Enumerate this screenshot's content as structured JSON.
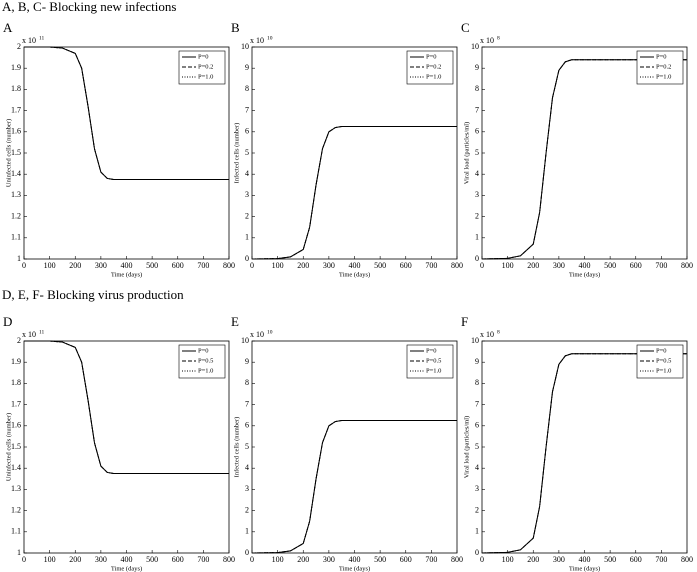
{
  "headings": [
    "A, B, C- Blocking new infections",
    "D, E, F- Blocking virus production"
  ],
  "chart_data": [
    {
      "type": "line",
      "panel": "A",
      "y_multiplier_base": "x 10",
      "y_multiplier_exponent": "11",
      "xlabel": "Time (days)",
      "ylabel": "Uninfected cells (number)",
      "x": [
        0,
        100,
        150,
        200,
        225,
        250,
        275,
        300,
        325,
        350,
        400,
        500,
        600,
        700,
        800
      ],
      "series": [
        {
          "name": "P=0",
          "color": "#000000",
          "dash": "solid",
          "values": [
            2,
            2,
            1.995,
            1.97,
            1.9,
            1.72,
            1.52,
            1.41,
            1.38,
            1.375,
            1.375,
            1.375,
            1.375,
            1.375,
            1.375
          ]
        },
        {
          "name": "P=0.2",
          "color": "#000000",
          "dash": "dashed",
          "values": [
            2,
            2,
            1.995,
            1.97,
            1.9,
            1.72,
            1.52,
            1.41,
            1.38,
            1.375,
            1.375,
            1.375,
            1.375,
            1.375,
            1.375
          ]
        },
        {
          "name": "P=1.0",
          "color": "#000000",
          "dash": "dotted",
          "values": [
            2,
            2,
            1.995,
            1.97,
            1.9,
            1.72,
            1.52,
            1.41,
            1.38,
            1.375,
            1.375,
            1.375,
            1.375,
            1.375,
            1.375
          ]
        }
      ],
      "xlim": [
        0,
        800
      ],
      "xticks": [
        0,
        100,
        200,
        300,
        400,
        500,
        600,
        700,
        800
      ],
      "ylim": [
        1,
        2
      ],
      "yticks": [
        1,
        1.1,
        1.2,
        1.3,
        1.4,
        1.5,
        1.6,
        1.7,
        1.8,
        1.9,
        2
      ],
      "legend": "upper right"
    },
    {
      "type": "line",
      "panel": "B",
      "y_multiplier_base": "x 10",
      "y_multiplier_exponent": "10",
      "xlabel": "Time (days)",
      "ylabel": "Infected cells (number)",
      "x": [
        0,
        100,
        150,
        200,
        225,
        250,
        275,
        300,
        325,
        350,
        400,
        500,
        600,
        700,
        800
      ],
      "series": [
        {
          "name": "P=0",
          "color": "#000000",
          "dash": "solid",
          "values": [
            0,
            0.02,
            0.1,
            0.45,
            1.5,
            3.5,
            5.2,
            6.0,
            6.2,
            6.25,
            6.25,
            6.25,
            6.25,
            6.25,
            6.25
          ]
        },
        {
          "name": "P=0.2",
          "color": "#000000",
          "dash": "dashed",
          "values": [
            0,
            0.02,
            0.1,
            0.45,
            1.5,
            3.5,
            5.2,
            6.0,
            6.2,
            6.25,
            6.25,
            6.25,
            6.25,
            6.25,
            6.25
          ]
        },
        {
          "name": "P=1.0",
          "color": "#000000",
          "dash": "dotted",
          "values": [
            0,
            0.02,
            0.1,
            0.45,
            1.5,
            3.5,
            5.2,
            6.0,
            6.2,
            6.25,
            6.25,
            6.25,
            6.25,
            6.25,
            6.25
          ]
        }
      ],
      "xlim": [
        0,
        800
      ],
      "xticks": [
        0,
        100,
        200,
        300,
        400,
        500,
        600,
        700,
        800
      ],
      "ylim": [
        0,
        10
      ],
      "yticks": [
        0,
        1,
        2,
        3,
        4,
        5,
        6,
        7,
        8,
        9,
        10
      ],
      "legend": "upper right"
    },
    {
      "type": "line",
      "panel": "C",
      "y_multiplier_base": "x 10",
      "y_multiplier_exponent": "8",
      "xlabel": "Time (days)",
      "ylabel": "Viral load (particles/ml)",
      "x": [
        0,
        100,
        150,
        200,
        225,
        250,
        275,
        300,
        325,
        350,
        400,
        500,
        600,
        700,
        800
      ],
      "series": [
        {
          "name": "P=0",
          "color": "#000000",
          "dash": "solid",
          "values": [
            0,
            0.03,
            0.15,
            0.7,
            2.2,
            5.0,
            7.6,
            8.9,
            9.3,
            9.4,
            9.4,
            9.4,
            9.4,
            9.4,
            9.4
          ]
        },
        {
          "name": "P=0.2",
          "color": "#000000",
          "dash": "dashed",
          "values": [
            0,
            0.03,
            0.15,
            0.7,
            2.2,
            5.0,
            7.6,
            8.9,
            9.3,
            9.4,
            9.4,
            9.4,
            9.4,
            9.4,
            9.4
          ]
        },
        {
          "name": "P=1.0",
          "color": "#000000",
          "dash": "dotted",
          "values": [
            0,
            0.03,
            0.15,
            0.7,
            2.2,
            5.0,
            7.6,
            8.9,
            9.3,
            9.4,
            9.4,
            9.4,
            9.4,
            9.4,
            9.4
          ]
        }
      ],
      "xlim": [
        0,
        800
      ],
      "xticks": [
        0,
        100,
        200,
        300,
        400,
        500,
        600,
        700,
        800
      ],
      "ylim": [
        0,
        10
      ],
      "yticks": [
        0,
        1,
        2,
        3,
        4,
        5,
        6,
        7,
        8,
        9,
        10
      ],
      "legend": "upper right"
    },
    {
      "type": "line",
      "panel": "D",
      "y_multiplier_base": "x 10",
      "y_multiplier_exponent": "11",
      "xlabel": "Time (days)",
      "ylabel": "Uninfected cells (number)",
      "x": [
        0,
        100,
        150,
        200,
        225,
        250,
        275,
        300,
        325,
        350,
        400,
        500,
        600,
        700,
        800
      ],
      "series": [
        {
          "name": "P=0",
          "color": "#000000",
          "dash": "solid",
          "values": [
            2,
            2,
            1.995,
            1.97,
            1.9,
            1.72,
            1.52,
            1.41,
            1.38,
            1.375,
            1.375,
            1.375,
            1.375,
            1.375,
            1.375
          ]
        },
        {
          "name": "P=0.5",
          "color": "#000000",
          "dash": "dashed",
          "values": [
            2,
            2,
            1.995,
            1.97,
            1.9,
            1.72,
            1.52,
            1.41,
            1.38,
            1.375,
            1.375,
            1.375,
            1.375,
            1.375,
            1.375
          ]
        },
        {
          "name": "P=1.0",
          "color": "#000000",
          "dash": "dotted",
          "values": [
            2,
            2,
            1.995,
            1.97,
            1.9,
            1.72,
            1.52,
            1.41,
            1.38,
            1.375,
            1.375,
            1.375,
            1.375,
            1.375,
            1.375
          ]
        }
      ],
      "xlim": [
        0,
        800
      ],
      "xticks": [
        0,
        100,
        200,
        300,
        400,
        500,
        600,
        700,
        800
      ],
      "ylim": [
        1,
        2
      ],
      "yticks": [
        1,
        1.1,
        1.2,
        1.3,
        1.4,
        1.5,
        1.6,
        1.7,
        1.8,
        1.9,
        2
      ],
      "legend": "upper right"
    },
    {
      "type": "line",
      "panel": "E",
      "y_multiplier_base": "x 10",
      "y_multiplier_exponent": "10",
      "xlabel": "Time (days)",
      "ylabel": "Infected cells (number)",
      "x": [
        0,
        100,
        150,
        200,
        225,
        250,
        275,
        300,
        325,
        350,
        400,
        500,
        600,
        700,
        800
      ],
      "series": [
        {
          "name": "P=0",
          "color": "#000000",
          "dash": "solid",
          "values": [
            0,
            0.02,
            0.1,
            0.45,
            1.5,
            3.5,
            5.2,
            6.0,
            6.2,
            6.25,
            6.25,
            6.25,
            6.25,
            6.25,
            6.25
          ]
        },
        {
          "name": "P=0.5",
          "color": "#000000",
          "dash": "dashed",
          "values": [
            0,
            0.02,
            0.1,
            0.45,
            1.5,
            3.5,
            5.2,
            6.0,
            6.2,
            6.25,
            6.25,
            6.25,
            6.25,
            6.25,
            6.25
          ]
        },
        {
          "name": "P=1.0",
          "color": "#000000",
          "dash": "dotted",
          "values": [
            0,
            0.02,
            0.1,
            0.45,
            1.5,
            3.5,
            5.2,
            6.0,
            6.2,
            6.25,
            6.25,
            6.25,
            6.25,
            6.25,
            6.25
          ]
        }
      ],
      "xlim": [
        0,
        800
      ],
      "xticks": [
        0,
        100,
        200,
        300,
        400,
        500,
        600,
        700,
        800
      ],
      "ylim": [
        0,
        10
      ],
      "yticks": [
        0,
        1,
        2,
        3,
        4,
        5,
        6,
        7,
        8,
        9,
        10
      ],
      "legend": "upper right"
    },
    {
      "type": "line",
      "panel": "F",
      "y_multiplier_base": "x 10",
      "y_multiplier_exponent": "8",
      "xlabel": "Time (days)",
      "ylabel": "Viral load (particles/ml)",
      "x": [
        0,
        100,
        150,
        200,
        225,
        250,
        275,
        300,
        325,
        350,
        400,
        500,
        600,
        700,
        800
      ],
      "series": [
        {
          "name": "P=0",
          "color": "#000000",
          "dash": "solid",
          "values": [
            0,
            0.03,
            0.15,
            0.7,
            2.2,
            5.0,
            7.6,
            8.9,
            9.3,
            9.4,
            9.4,
            9.4,
            9.4,
            9.4,
            9.4
          ]
        },
        {
          "name": "P=0.5",
          "color": "#000000",
          "dash": "dashed",
          "values": [
            0,
            0.03,
            0.15,
            0.7,
            2.2,
            5.0,
            7.6,
            8.9,
            9.3,
            9.4,
            9.4,
            9.4,
            9.4,
            9.4,
            9.4
          ]
        },
        {
          "name": "P=1.0",
          "color": "#000000",
          "dash": "dotted",
          "values": [
            0,
            0.03,
            0.15,
            0.7,
            2.2,
            5.0,
            7.6,
            8.9,
            9.3,
            9.4,
            9.4,
            9.4,
            9.4,
            9.4,
            9.4
          ]
        }
      ],
      "xlim": [
        0,
        800
      ],
      "xticks": [
        0,
        100,
        200,
        300,
        400,
        500,
        600,
        700,
        800
      ],
      "ylim": [
        0,
        10
      ],
      "yticks": [
        0,
        1,
        2,
        3,
        4,
        5,
        6,
        7,
        8,
        9,
        10
      ],
      "legend": "upper right"
    }
  ]
}
